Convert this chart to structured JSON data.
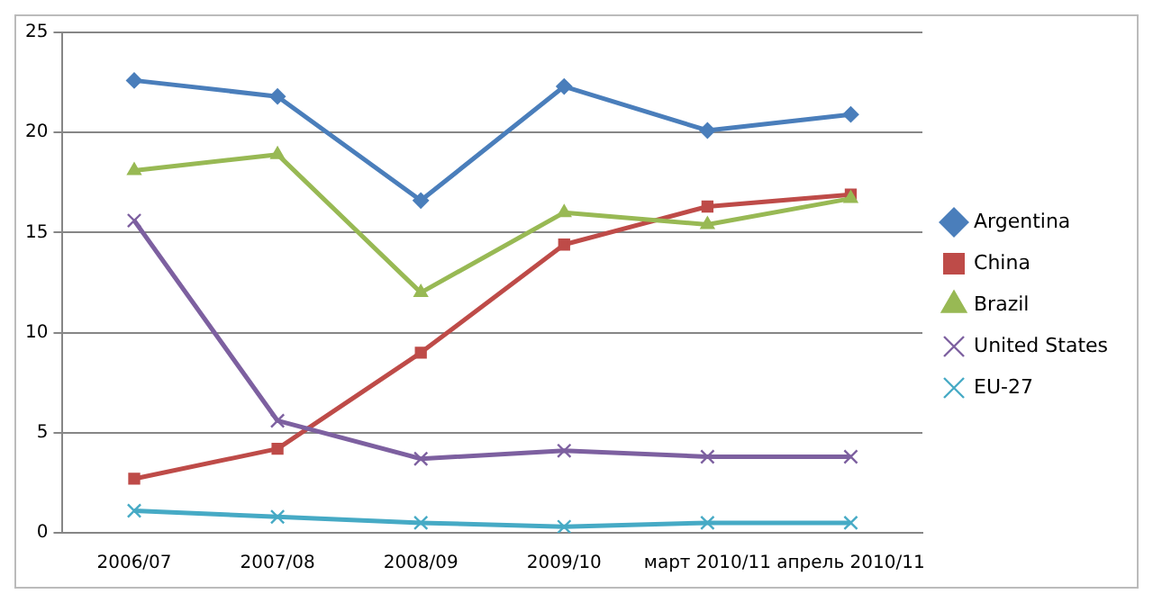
{
  "chart_data": {
    "type": "line",
    "categories": [
      "2006/07",
      "2007/08",
      "2008/09",
      "2009/10",
      "март 2010/11",
      "апрель 2010/11"
    ],
    "series": [
      {
        "name": "Argentina",
        "color": "#4a7ebb",
        "marker": "diamond",
        "values": [
          22.6,
          21.8,
          16.6,
          22.3,
          20.1,
          20.9
        ]
      },
      {
        "name": "China",
        "color": "#be4b48",
        "marker": "square",
        "values": [
          2.7,
          4.2,
          9.0,
          14.4,
          16.3,
          16.9
        ]
      },
      {
        "name": "Brazil",
        "color": "#98b954",
        "marker": "triangle",
        "values": [
          18.1,
          18.9,
          12.0,
          16.0,
          15.4,
          16.7
        ]
      },
      {
        "name": "United States",
        "color": "#7d60a0",
        "marker": "cross",
        "values": [
          15.6,
          5.6,
          3.7,
          4.1,
          3.8,
          3.8
        ]
      },
      {
        "name": "EU-27",
        "color": "#46aac5",
        "marker": "cross",
        "values": [
          1.1,
          0.8,
          0.5,
          0.3,
          0.5,
          0.5
        ]
      }
    ],
    "ylim": [
      0,
      25
    ],
    "yticks": [
      0,
      5,
      10,
      15,
      20,
      25
    ],
    "grid": "y",
    "legend": "right",
    "line_style": "solid"
  }
}
